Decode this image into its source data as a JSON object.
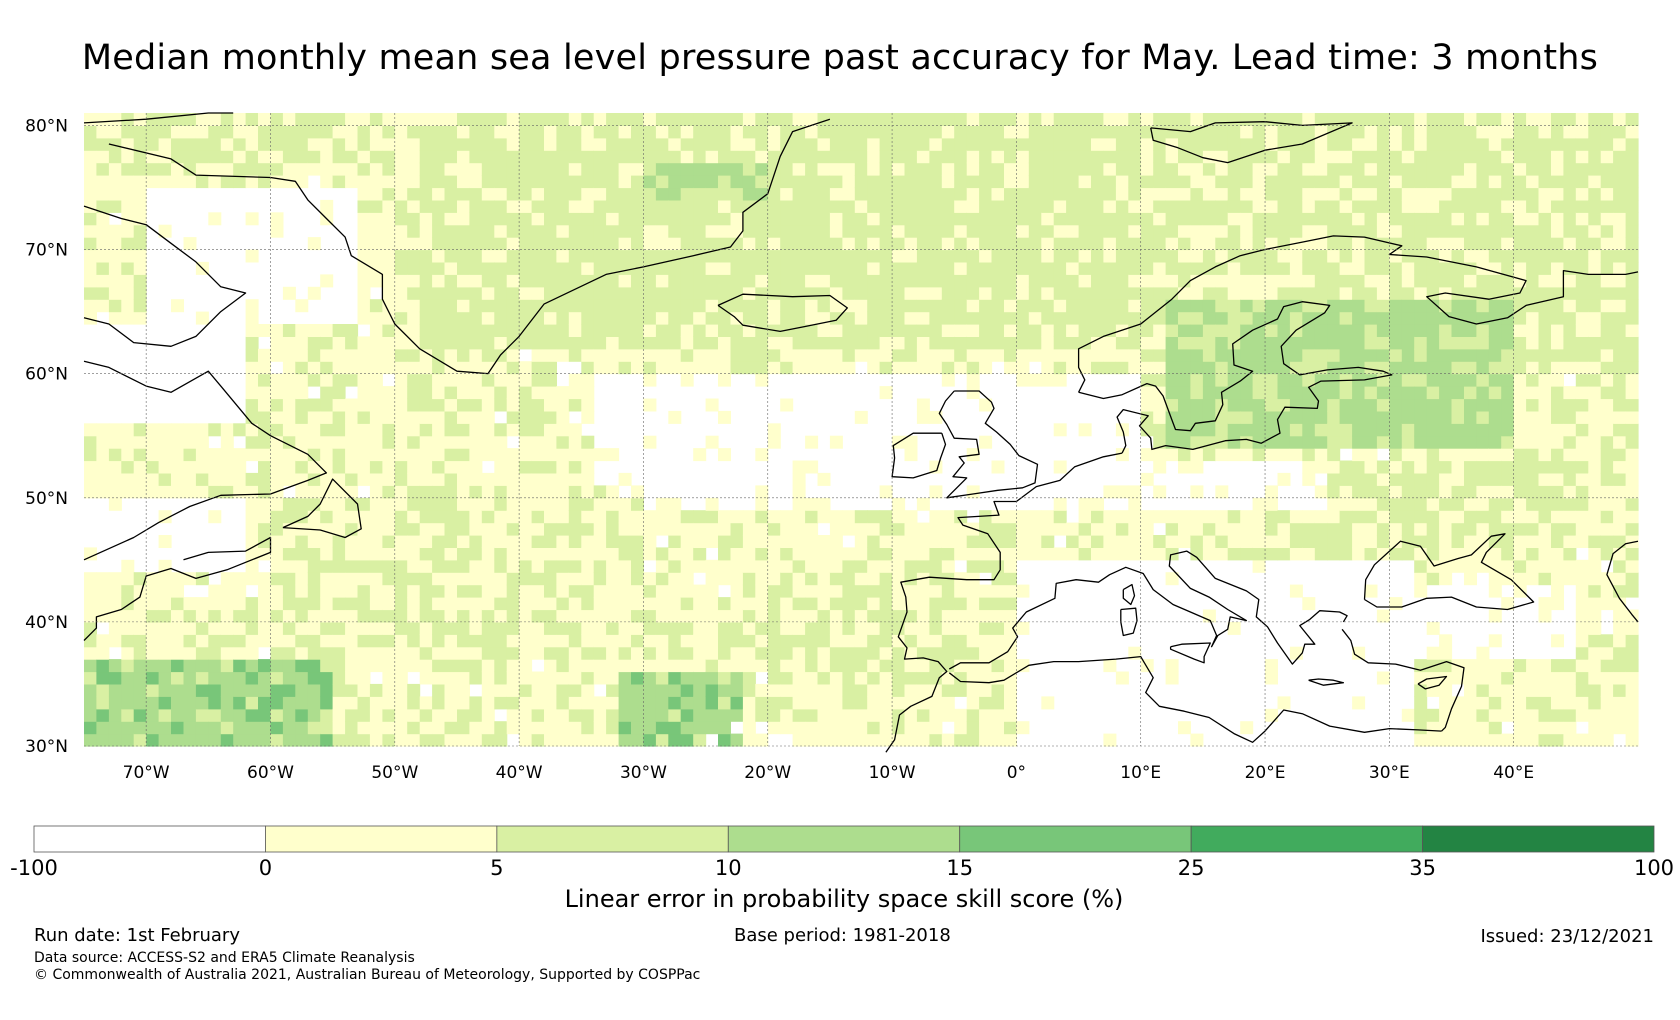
{
  "title": "Median monthly mean sea level pressure past accuracy for May. Lead time: 3 months",
  "map": {
    "lat_labels": [
      "80°N",
      "70°N",
      "60°N",
      "50°N",
      "40°N",
      "30°N"
    ],
    "lat_values": [
      80,
      70,
      60,
      50,
      40,
      30
    ],
    "lon_labels": [
      "70°W",
      "60°W",
      "50°W",
      "40°W",
      "30°W",
      "20°W",
      "10°W",
      "0°",
      "10°E",
      "20°E",
      "30°E",
      "40°E"
    ],
    "lon_values": [
      -70,
      -60,
      -50,
      -40,
      -30,
      -20,
      -10,
      0,
      10,
      20,
      30,
      40
    ],
    "lon_range": [
      -75,
      50
    ],
    "lat_range": [
      30,
      81
    ]
  },
  "colorbar": {
    "tick_labels": [
      "-100",
      "0",
      "5",
      "10",
      "15",
      "25",
      "35",
      "100"
    ],
    "bins": [
      {
        "from": -100,
        "to": 0,
        "color": "#ffffff"
      },
      {
        "from": 0,
        "to": 5,
        "color": "#ffffcc"
      },
      {
        "from": 5,
        "to": 10,
        "color": "#d9f0a3"
      },
      {
        "from": 10,
        "to": 15,
        "color": "#addd8e"
      },
      {
        "from": 15,
        "to": 25,
        "color": "#78c679"
      },
      {
        "from": 25,
        "to": 35,
        "color": "#41ab5d"
      },
      {
        "from": 35,
        "to": 100,
        "color": "#238443"
      }
    ],
    "title": "Linear error in probability space skill score (%)"
  },
  "footer": {
    "run_date": "Run date: 1st February",
    "base_period": "Base period: 1981-2018",
    "issued": "Issued: 23/12/2021",
    "data_source": "Data source: ACCESS-S2 and ERA5 Climate Reanalysis",
    "copyright": "© Commonwealth of Australia 2021, Australian Bureau of Meteorology, Supported by COSPPac"
  },
  "colors": {
    "white": "#ffffff",
    "c0_5": "#ffffcc",
    "c5_10": "#d9f0a3",
    "c10_15": "#addd8e",
    "c15_25": "#78c679",
    "c25_35": "#41ab5d"
  }
}
